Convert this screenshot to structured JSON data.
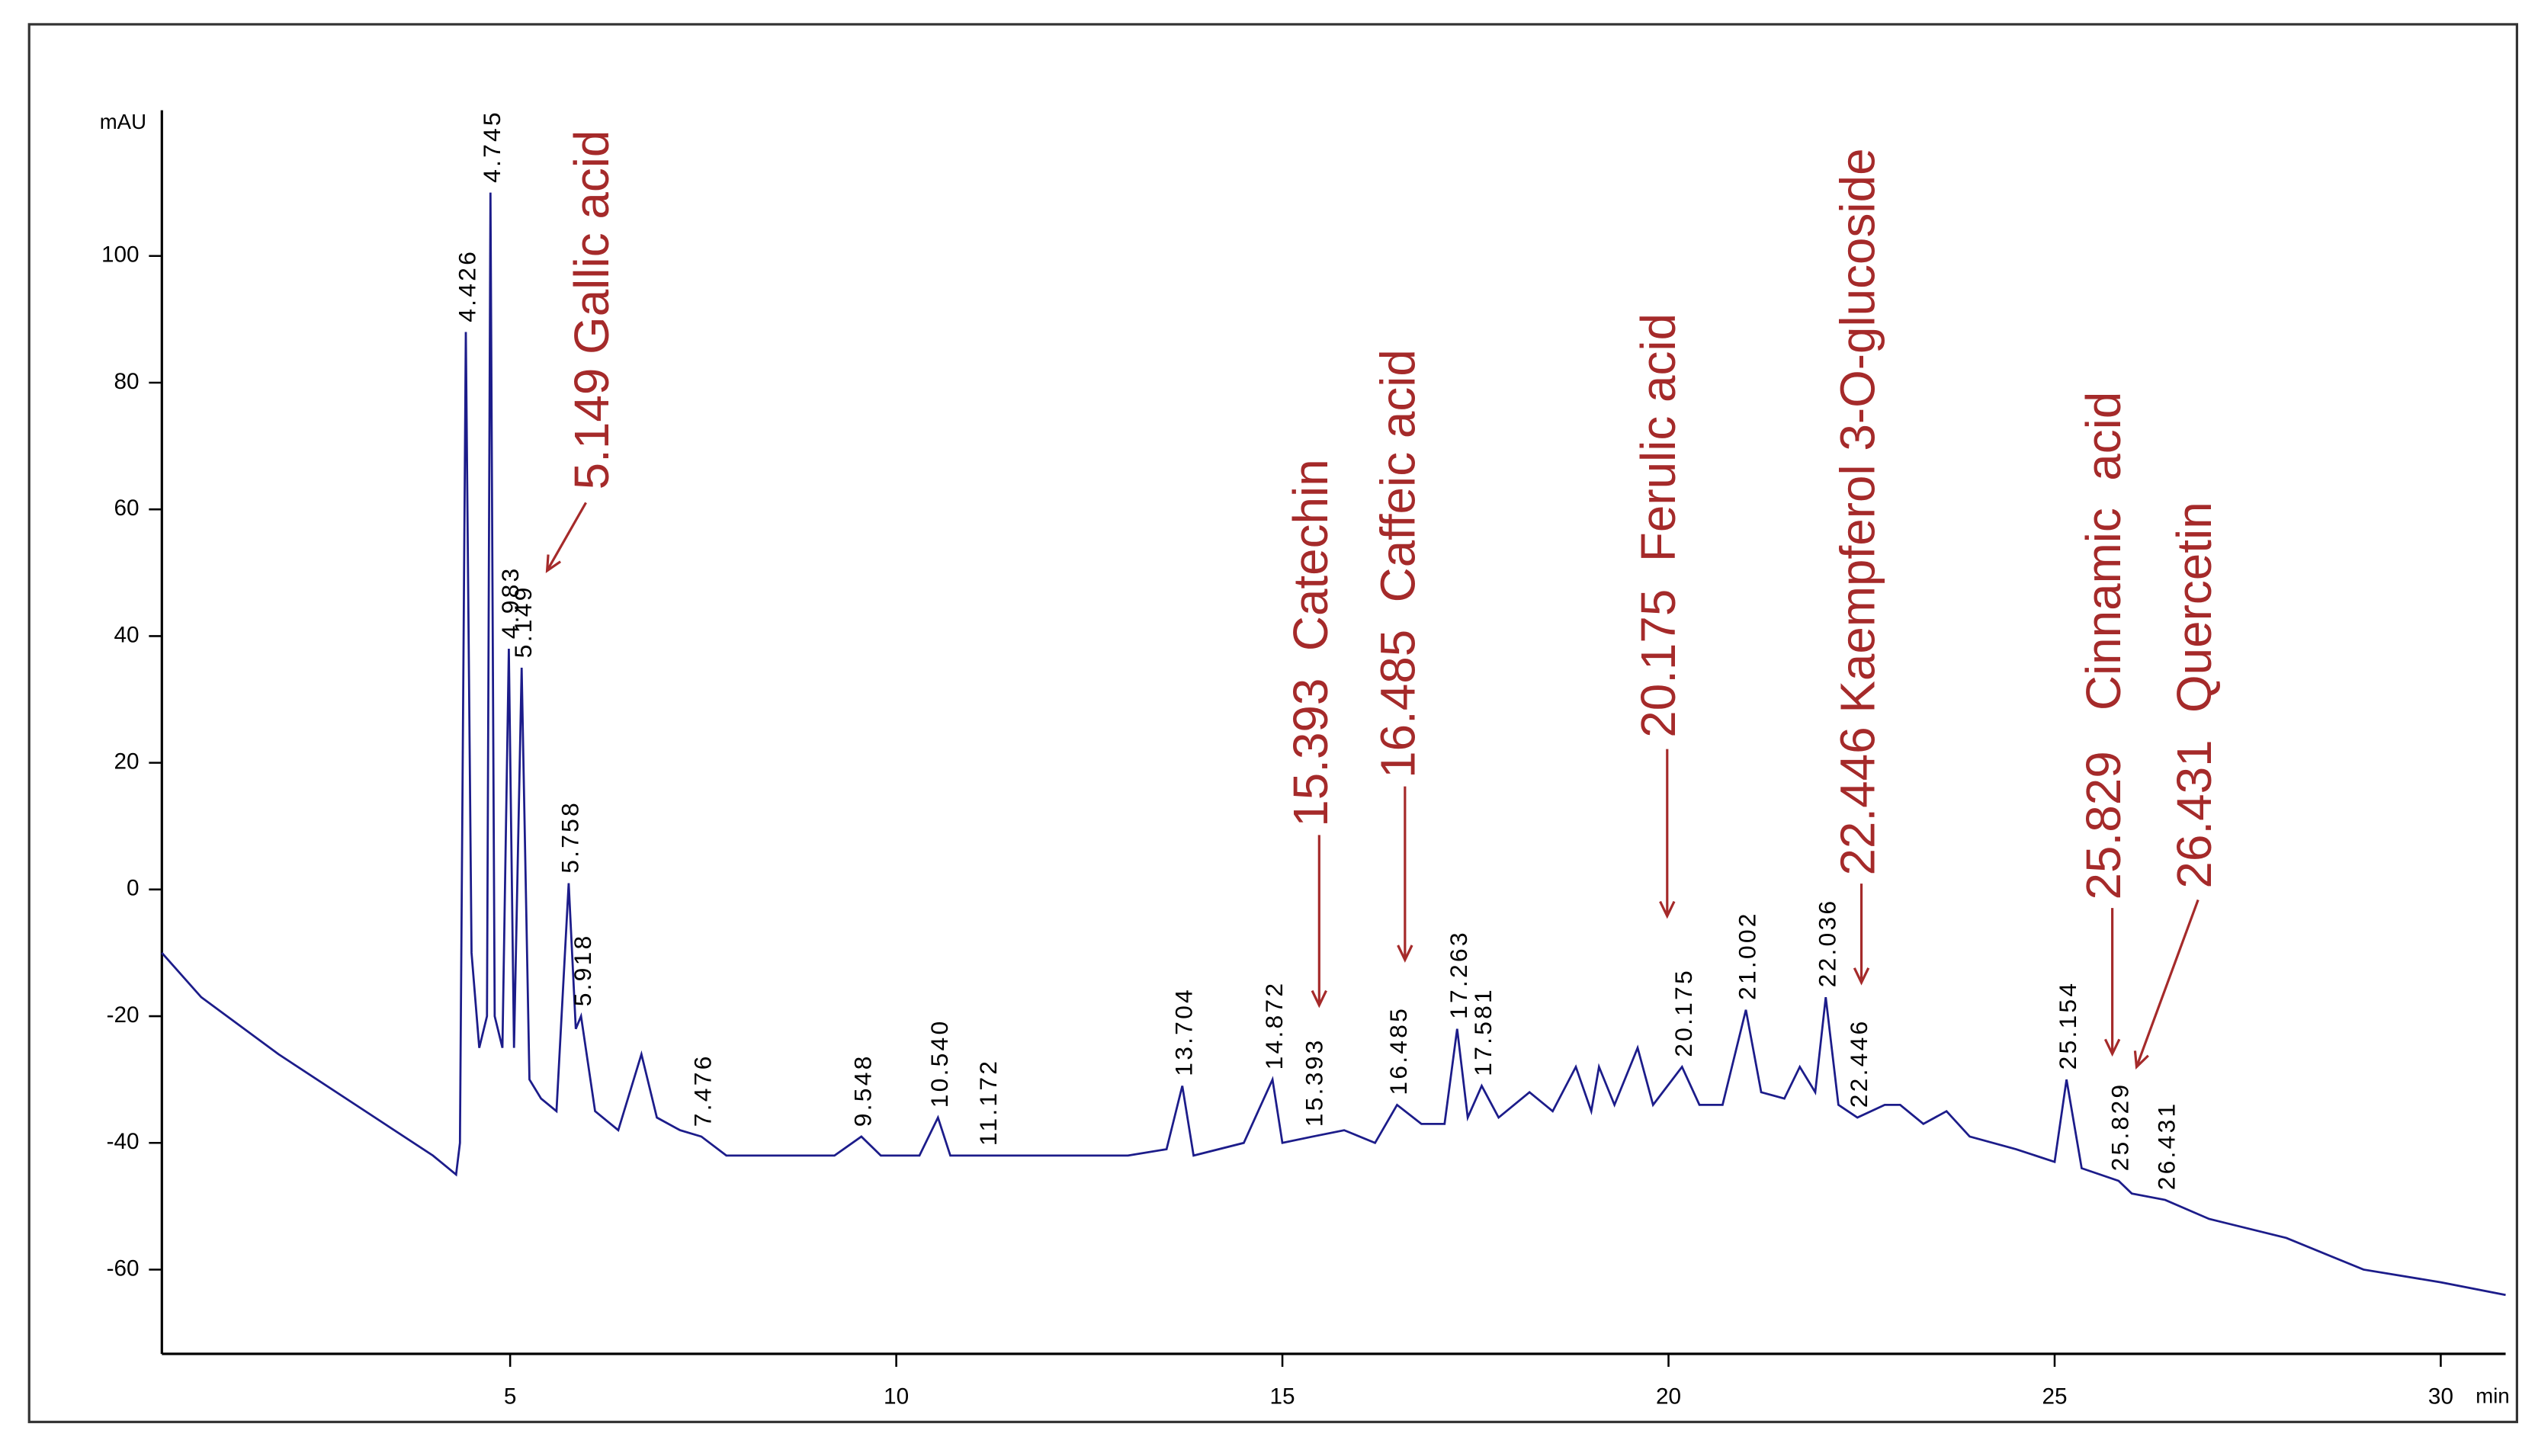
{
  "chart_data": {
    "type": "line",
    "y_unit": "mAU",
    "x_unit": "min",
    "color": "#1c1c8a",
    "xlim": [
      0.49,
      30.84
    ],
    "ylim": [
      -73.3,
      123
    ],
    "xticks": [
      5,
      10,
      15,
      20,
      25,
      30
    ],
    "yticks": [
      -60,
      -40,
      -20,
      0,
      20,
      40,
      60,
      80,
      100
    ],
    "x": [
      0.49,
      1,
      2,
      3,
      4,
      4.3,
      4.35,
      4.426,
      4.5,
      4.6,
      4.7,
      4.745,
      4.8,
      4.9,
      4.983,
      5.05,
      5.149,
      5.25,
      5.4,
      5.6,
      5.758,
      5.85,
      5.918,
      6.1,
      6.4,
      6.7,
      6.9,
      7.2,
      7.476,
      7.8,
      8.5,
      9.2,
      9.548,
      9.8,
      10.3,
      10.54,
      10.7,
      11.172,
      12,
      13,
      13.5,
      13.704,
      13.85,
      14.5,
      14.872,
      15,
      15.393,
      15.8,
      16.2,
      16.485,
      16.8,
      17.1,
      17.263,
      17.4,
      17.581,
      17.8,
      18.2,
      18.5,
      18.8,
      19,
      19.1,
      19.3,
      19.6,
      19.8,
      20.175,
      20.4,
      20.7,
      21.002,
      21.2,
      21.5,
      21.7,
      21.9,
      22.036,
      22.2,
      22.446,
      22.8,
      23,
      23.3,
      23.6,
      23.9,
      24.5,
      25,
      25.154,
      25.35,
      25.829,
      26,
      26.431,
      27,
      28,
      29,
      30,
      30.84
    ],
    "values": [
      -10,
      -17,
      -26,
      -34,
      -42,
      -45,
      -40,
      88,
      -10,
      -25,
      -20,
      110,
      -20,
      -25,
      38,
      -25,
      35,
      -30,
      -33,
      -35,
      1,
      -22,
      -20,
      -35,
      -38,
      -26,
      -36,
      -38,
      -39,
      -42,
      -42,
      -42,
      -39,
      -42,
      -42,
      -36,
      -42,
      -42,
      -42,
      -42,
      -41,
      -31,
      -42,
      -40,
      -30,
      -40,
      -39,
      -38,
      -40,
      -34,
      -37,
      -37,
      -22,
      -36,
      -31,
      -36,
      -32,
      -35,
      -28,
      -35,
      -28,
      -34,
      -25,
      -34,
      -28,
      -34,
      -34,
      -19,
      -32,
      -33,
      -28,
      -32,
      -17,
      -34,
      -36,
      -34,
      -34,
      -37,
      -35,
      -39,
      -41,
      -43,
      -30,
      -44,
      -46,
      -48,
      -49,
      -52,
      -55,
      -60,
      -62,
      -64
    ],
    "peak_labels": [
      4.426,
      4.745,
      4.983,
      5.149,
      5.758,
      5.918,
      7.476,
      9.548,
      {
        "value": 10.54,
        "label": "10.540"
      },
      11.172,
      13.704,
      14.872,
      15.393,
      16.485,
      17.263,
      17.581,
      20.175,
      21.002,
      22.036,
      22.446,
      25.154,
      25.829,
      26.431
    ],
    "annotations": [
      "5.149 Gallic acid",
      "15.393  Catechin",
      "16.485  Caffeic acid",
      "20.175  Ferulic acid",
      "22.446 Kaempferol 3-O-glucoside",
      "25.829   Cinnamic  acid",
      "26.431  Quercetin"
    ]
  }
}
